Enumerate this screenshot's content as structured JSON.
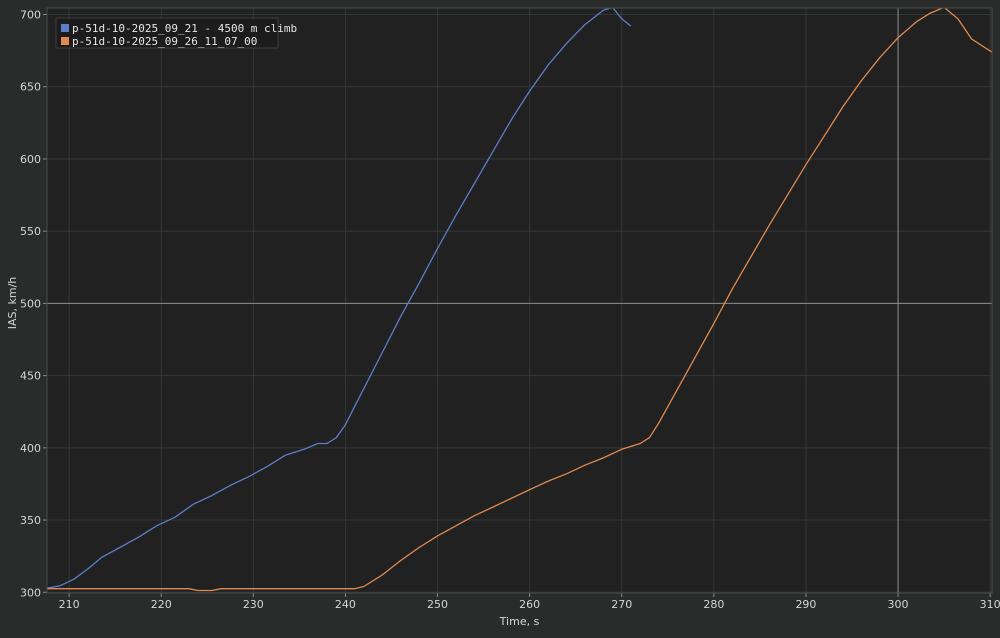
{
  "chart_data": {
    "type": "line",
    "xlabel": "Time, s",
    "ylabel": "IAS, km/h",
    "xlim": [
      207.6,
      310.2
    ],
    "ylim": [
      299.5,
      704.5
    ],
    "x_ticks": [
      210,
      220,
      230,
      240,
      250,
      260,
      270,
      280,
      290,
      300,
      310
    ],
    "y_ticks": [
      300,
      350,
      400,
      450,
      500,
      550,
      600,
      650,
      700
    ],
    "grid": true,
    "crosshair": {
      "x": 300,
      "y": 500
    },
    "legend_position": "top-left",
    "series": [
      {
        "name": "p-51d-10-2025_09_21 - 4500 m climb",
        "color": "#5a7fc7",
        "points": [
          [
            207.6,
            302.8
          ],
          [
            209.0,
            304.5
          ],
          [
            210.5,
            309
          ],
          [
            212.0,
            316
          ],
          [
            213.5,
            324
          ],
          [
            215.5,
            331
          ],
          [
            217.5,
            338
          ],
          [
            219.5,
            346
          ],
          [
            221.5,
            352
          ],
          [
            223.5,
            361
          ],
          [
            225.5,
            367
          ],
          [
            227.5,
            374
          ],
          [
            229.5,
            380
          ],
          [
            231.5,
            387
          ],
          [
            233.5,
            395
          ],
          [
            235.5,
            399
          ],
          [
            237.0,
            403
          ],
          [
            238.0,
            403
          ],
          [
            239.0,
            407
          ],
          [
            240.0,
            416
          ],
          [
            242.0,
            441
          ],
          [
            244.0,
            466
          ],
          [
            246.0,
            491
          ],
          [
            248.0,
            514
          ],
          [
            250.0,
            538
          ],
          [
            252.0,
            561
          ],
          [
            254.0,
            583
          ],
          [
            256.0,
            605
          ],
          [
            258.0,
            627
          ],
          [
            260.0,
            647
          ],
          [
            262.0,
            665
          ],
          [
            264.0,
            680
          ],
          [
            266.0,
            693
          ],
          [
            268.0,
            703
          ],
          [
            269.0,
            705
          ],
          [
            270.0,
            697
          ],
          [
            271.0,
            692
          ]
        ]
      },
      {
        "name": "p-51d-10-2025_09_26_11_07_00",
        "color": "#e08a4f",
        "points": [
          [
            207.6,
            302.5
          ],
          [
            223.0,
            302.5
          ],
          [
            224.0,
            301.2
          ],
          [
            225.5,
            301.2
          ],
          [
            226.5,
            302.5
          ],
          [
            241.0,
            302.5
          ],
          [
            242.0,
            304
          ],
          [
            244.0,
            312
          ],
          [
            246.0,
            322
          ],
          [
            248.0,
            331
          ],
          [
            250.0,
            339
          ],
          [
            252.0,
            346
          ],
          [
            254.0,
            353
          ],
          [
            256.0,
            359
          ],
          [
            258.0,
            365
          ],
          [
            260.0,
            371
          ],
          [
            262.0,
            377
          ],
          [
            264.0,
            382
          ],
          [
            266.0,
            388
          ],
          [
            268.0,
            393
          ],
          [
            270.0,
            399
          ],
          [
            272.0,
            403
          ],
          [
            273.0,
            407
          ],
          [
            274.0,
            417
          ],
          [
            276.0,
            440
          ],
          [
            278.0,
            463
          ],
          [
            280.0,
            486
          ],
          [
            282.0,
            510
          ],
          [
            284.0,
            532
          ],
          [
            286.0,
            554
          ],
          [
            288.0,
            575
          ],
          [
            290.0,
            596
          ],
          [
            292.0,
            616
          ],
          [
            294.0,
            636
          ],
          [
            296.0,
            654
          ],
          [
            298.0,
            670
          ],
          [
            300.0,
            684
          ],
          [
            302.0,
            695
          ],
          [
            303.5,
            701
          ],
          [
            305.0,
            705
          ],
          [
            306.5,
            697
          ],
          [
            308.0,
            683
          ],
          [
            310.2,
            674
          ]
        ]
      }
    ]
  }
}
